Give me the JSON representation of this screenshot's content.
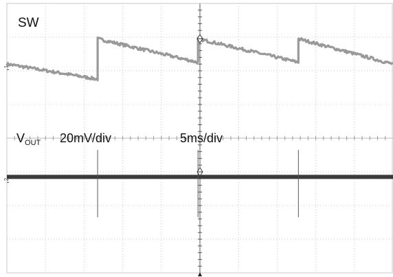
{
  "chart_data": {
    "type": "line",
    "title": "",
    "grid": true,
    "divisions": {
      "horizontal": 10,
      "vertical": 8
    },
    "labels": {
      "sw": "SW",
      "vout_main": "V",
      "vout_sub": "OUT",
      "v_scale": "20mV/div",
      "t_scale": "5ms/div"
    },
    "channel_markers": [
      "1",
      "2"
    ],
    "series": [
      {
        "name": "SW",
        "color": "#999999",
        "period_div": 2.6,
        "points": [
          {
            "t_div": 0.0,
            "y_div": 6.2
          },
          {
            "t_div": 2.35,
            "y_div": 5.75
          },
          {
            "t_div": 2.35,
            "y_div": 6.95
          },
          {
            "t_div": 4.95,
            "y_div": 6.25
          },
          {
            "t_div": 4.95,
            "y_div": 6.95
          },
          {
            "t_div": 7.55,
            "y_div": 6.25
          },
          {
            "t_div": 7.55,
            "y_div": 6.95
          },
          {
            "t_div": 10.0,
            "y_div": 6.2
          }
        ]
      },
      {
        "name": "VOUT",
        "color": "#3a3a3a",
        "level_div": 2.85,
        "spike_times_div": [
          2.35,
          4.95,
          7.55
        ],
        "spike_top_div": 3.65,
        "spike_bottom_div": 1.65
      }
    ]
  }
}
